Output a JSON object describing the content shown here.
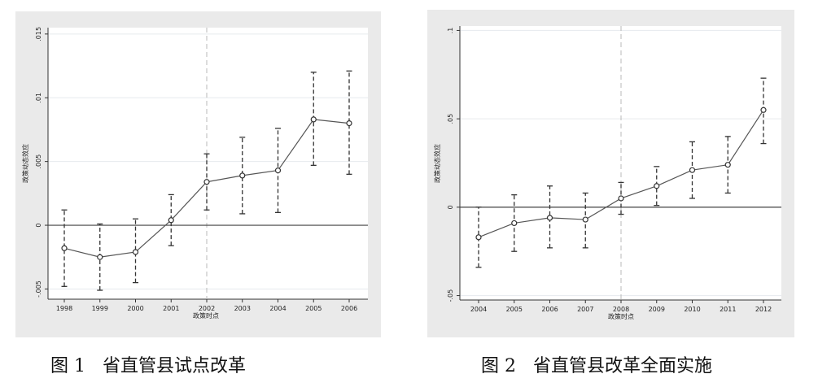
{
  "captions": [
    "图 1   省直管县试点改革",
    "图 2   省直管县改革全面实施"
  ],
  "chart_data": [
    {
      "type": "line",
      "categories": [
        "1998",
        "1999",
        "2000",
        "2001",
        "2002",
        "2003",
        "2004",
        "2005",
        "2006"
      ],
      "series": [
        {
          "values": [
            -0.0018,
            -0.0025,
            -0.0021,
            0.0004,
            0.0034,
            0.0039,
            0.0043,
            0.0083,
            0.008
          ],
          "ci_low": [
            -0.0048,
            -0.0051,
            -0.0045,
            -0.0016,
            0.0012,
            0.0009,
            0.001,
            0.0047,
            0.004
          ],
          "ci_high": [
            0.0012,
            0.0001,
            0.0005,
            0.0024,
            0.0056,
            0.0069,
            0.0076,
            0.012,
            0.0121
          ]
        }
      ],
      "xlabel": "政策时点",
      "ylabel": "政策动态效应",
      "ylim": [
        -0.0058,
        0.0155
      ],
      "yticks": [
        -0.005,
        0,
        0.005,
        0.01,
        0.015
      ],
      "ytick_labels": [
        "-.005",
        "0",
        ".005",
        ".01",
        ".015"
      ],
      "vline_category": "2002",
      "hline": 0,
      "grid": true
    },
    {
      "type": "line",
      "categories": [
        "2004",
        "2005",
        "2006",
        "2007",
        "2008",
        "2009",
        "2010",
        "2011",
        "2012"
      ],
      "series": [
        {
          "values": [
            -0.017,
            -0.009,
            -0.006,
            -0.007,
            0.005,
            0.012,
            0.021,
            0.024,
            0.055
          ],
          "ci_low": [
            -0.034,
            -0.025,
            -0.023,
            -0.023,
            -0.004,
            0.001,
            0.005,
            0.008,
            0.036
          ],
          "ci_high": [
            0.0,
            0.007,
            0.012,
            0.008,
            0.014,
            0.023,
            0.037,
            0.04,
            0.073
          ]
        }
      ],
      "xlabel": "政策时点",
      "ylabel": "政策动态效应",
      "ylim": [
        -0.0525,
        0.1025
      ],
      "yticks": [
        -0.05,
        0,
        0.05,
        0.1
      ],
      "ytick_labels": [
        "-.05",
        "0",
        ".05",
        ".1"
      ],
      "vline_category": "2008",
      "hline": 0,
      "grid": true
    }
  ]
}
